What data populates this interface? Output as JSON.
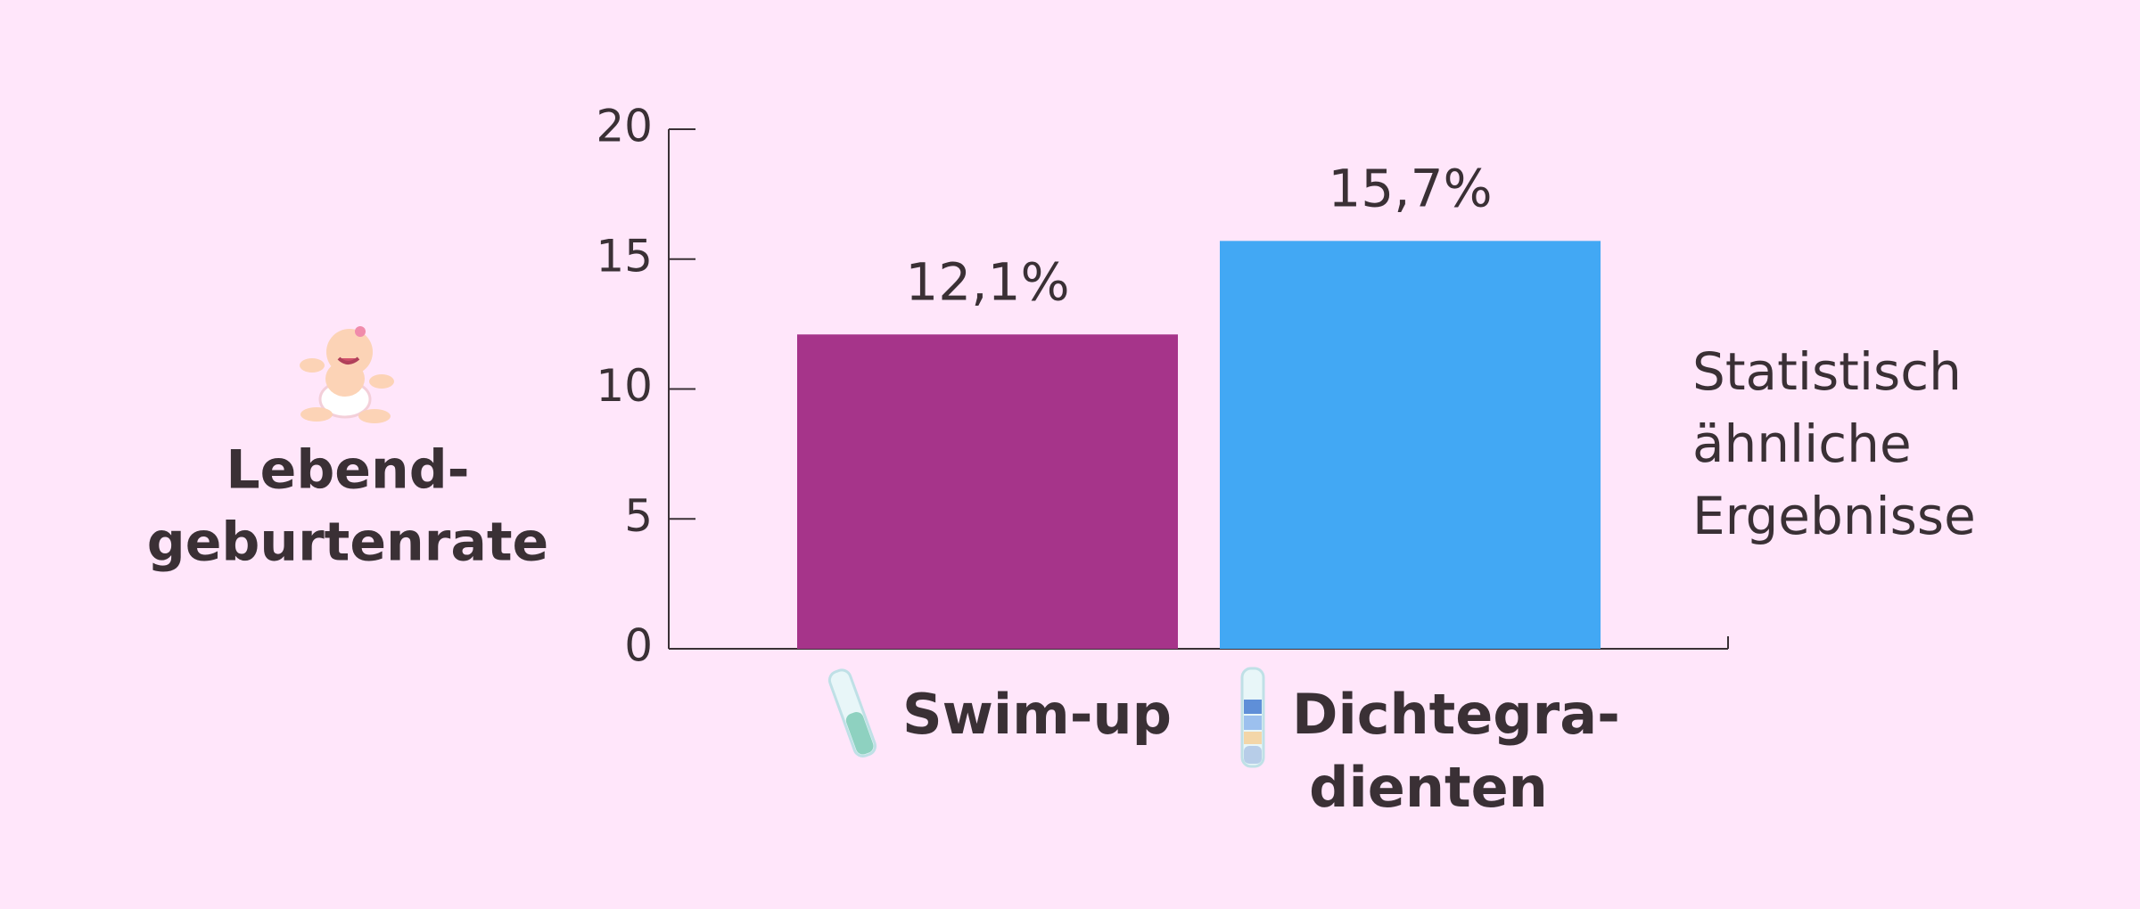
{
  "chart_data": {
    "type": "bar",
    "y_label": [
      "Lebend-",
      "geburtenrate"
    ],
    "annotation": [
      "Statistisch",
      "ähnliche",
      "Ergebnisse"
    ],
    "categories": [
      [
        "Swim-up"
      ],
      [
        "Dichtegra-",
        "dienten"
      ]
    ],
    "values": [
      12.1,
      15.7
    ],
    "value_labels": [
      "12,1%",
      "15,7%"
    ],
    "colors": [
      "#a6348a",
      "#42a8f4"
    ],
    "ylim": [
      0,
      20
    ],
    "yticks": [
      0,
      5,
      10,
      15,
      20
    ]
  }
}
